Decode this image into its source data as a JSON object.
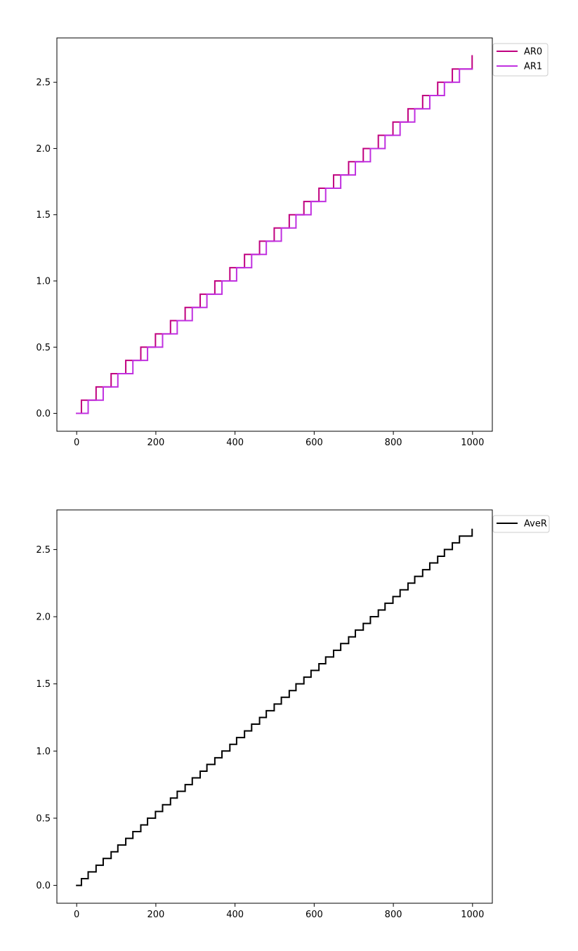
{
  "chart_data": [
    {
      "type": "line",
      "step": true,
      "title": "",
      "xlabel": "",
      "ylabel": "",
      "xlim": [
        -50,
        1050
      ],
      "ylim": [
        -0.135,
        2.835
      ],
      "xticks": [
        0,
        200,
        400,
        600,
        800,
        1000
      ],
      "xtick_labels": [
        "0",
        "200",
        "400",
        "600",
        "800",
        "1000"
      ],
      "yticks": [
        0.0,
        0.5,
        1.0,
        1.5,
        2.0,
        2.5
      ],
      "ytick_labels": [
        "0.0",
        "0.5",
        "1.0",
        "1.5",
        "2.0",
        "2.5"
      ],
      "grid": false,
      "legend_placement": "outside-top-right",
      "series": [
        {
          "name": "AR0",
          "color": "#c0007f",
          "x": [
            0,
            12,
            49,
            87,
            124,
            162,
            199,
            237,
            274,
            312,
            349,
            387,
            424,
            462,
            499,
            537,
            574,
            612,
            649,
            687,
            724,
            762,
            799,
            837,
            874,
            912,
            949,
            999
          ],
          "y": [
            0.0,
            0.1,
            0.2,
            0.3,
            0.4,
            0.5,
            0.6,
            0.7,
            0.8,
            0.9,
            1.0,
            1.1,
            1.2,
            1.3,
            1.4,
            1.5,
            1.6,
            1.7,
            1.8,
            1.9,
            2.0,
            2.1,
            2.2,
            2.3,
            2.4,
            2.5,
            2.6,
            2.7
          ]
        },
        {
          "name": "AR1",
          "color": "#c030e0",
          "x": [
            0,
            29,
            67,
            104,
            142,
            179,
            217,
            254,
            292,
            329,
            367,
            404,
            442,
            479,
            517,
            554,
            592,
            629,
            667,
            704,
            742,
            779,
            817,
            854,
            892,
            929,
            967
          ],
          "y": [
            0.0,
            0.1,
            0.2,
            0.3,
            0.4,
            0.5,
            0.6,
            0.7,
            0.8,
            0.9,
            1.0,
            1.1,
            1.2,
            1.3,
            1.4,
            1.5,
            1.6,
            1.7,
            1.8,
            1.9,
            2.0,
            2.1,
            2.2,
            2.3,
            2.4,
            2.5,
            2.6
          ],
          "x_end": 999
        }
      ]
    },
    {
      "type": "line",
      "step": true,
      "title": "",
      "xlabel": "",
      "ylabel": "",
      "xlim": [
        -50,
        1050
      ],
      "ylim": [
        -0.133,
        2.795
      ],
      "xticks": [
        0,
        200,
        400,
        600,
        800,
        1000
      ],
      "xtick_labels": [
        "0",
        "200",
        "400",
        "600",
        "800",
        "1000"
      ],
      "yticks": [
        0.0,
        0.5,
        1.0,
        1.5,
        2.0,
        2.5
      ],
      "ytick_labels": [
        "0.0",
        "0.5",
        "1.0",
        "1.5",
        "2.0",
        "2.5"
      ],
      "grid": false,
      "legend_placement": "outside-top-right",
      "series": [
        {
          "name": "AveR",
          "color": "#000000",
          "x": [
            0,
            12,
            29,
            49,
            67,
            87,
            104,
            124,
            142,
            162,
            179,
            199,
            217,
            237,
            254,
            274,
            292,
            312,
            329,
            349,
            367,
            387,
            404,
            424,
            442,
            462,
            479,
            499,
            517,
            537,
            554,
            574,
            592,
            612,
            629,
            649,
            667,
            687,
            704,
            724,
            742,
            762,
            779,
            799,
            817,
            837,
            854,
            874,
            892,
            912,
            929,
            949,
            967,
            999
          ],
          "y": [
            0.0,
            0.05,
            0.1,
            0.15,
            0.2,
            0.25,
            0.3,
            0.35,
            0.4,
            0.45,
            0.5,
            0.55,
            0.6,
            0.65,
            0.7,
            0.75,
            0.8,
            0.85,
            0.9,
            0.95,
            1.0,
            1.05,
            1.1,
            1.15,
            1.2,
            1.25,
            1.3,
            1.35,
            1.4,
            1.45,
            1.5,
            1.55,
            1.6,
            1.65,
            1.7,
            1.75,
            1.8,
            1.85,
            1.9,
            1.95,
            2.0,
            2.05,
            2.1,
            2.15,
            2.2,
            2.25,
            2.3,
            2.35,
            2.4,
            2.45,
            2.5,
            2.55,
            2.6,
            2.65
          ]
        }
      ]
    }
  ]
}
